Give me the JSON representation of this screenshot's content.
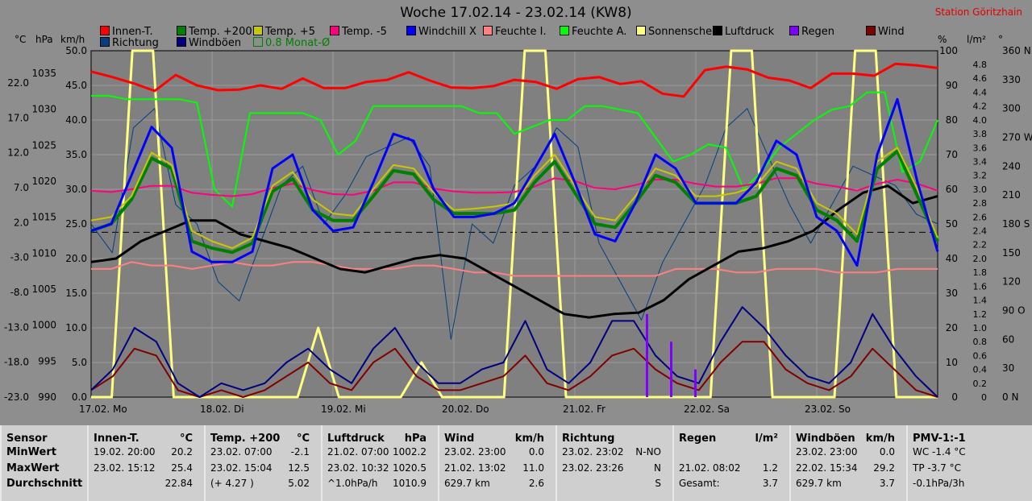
{
  "title": "Woche 17.02.14 - 23.02.14 (KW8)",
  "station": "Station Göritzhain",
  "axis_units": {
    "temp": "°C",
    "hpa": "hPa",
    "kmh": "km/h",
    "pct": "%",
    "lm2": "l/m²",
    "deg": "°"
  },
  "legend": [
    {
      "label": "Innen-T.",
      "color": "#ff0000"
    },
    {
      "label": "Temp. +200",
      "color": "#008000"
    },
    {
      "label": "Temp. +5",
      "color": "#c8c800"
    },
    {
      "label": "Temp. -5",
      "color": "#ff0080"
    },
    {
      "label": "Windchill X",
      "color": "#0000ff"
    },
    {
      "label": "Feuchte I.",
      "color": "#ff8080"
    },
    {
      "label": "Feuchte A.",
      "color": "#00ff00"
    },
    {
      "label": "Sonnenschein",
      "color": "#ffff80"
    },
    {
      "label": "Luftdruck",
      "color": "#000000"
    },
    {
      "label": "Regen",
      "color": "#8000ff"
    },
    {
      "label": "Wind",
      "color": "#800000"
    },
    {
      "label": "Richtung",
      "color": "#004080"
    },
    {
      "label": "Windböen",
      "color": "#000080"
    },
    {
      "label": "0.8 Monat-Ø",
      "color": "#008000"
    }
  ],
  "chart_data": {
    "type": "line",
    "x_labels": [
      "17.02. Mo",
      "18.02. Di",
      "19.02. Mi",
      "20.02. Do",
      "21.02. Fr",
      "22.02. Sa",
      "23.02. So"
    ],
    "axes": {
      "temp_ticks": [
        "22.0",
        "17.0",
        "12.0",
        "7.0",
        "2.0",
        "-3.0",
        "-8.0",
        "-13.0",
        "-18.0",
        "-23.0"
      ],
      "hpa_ticks": [
        "1035",
        "1030",
        "1025",
        "1020",
        "1015",
        "1010",
        "1005",
        "1000",
        "995",
        "990"
      ],
      "kmh_ticks": [
        "50.0",
        "45.0",
        "40.0",
        "35.0",
        "30.0",
        "25.0",
        "20.0",
        "15.0",
        "10.0",
        "5.0",
        "0.0"
      ],
      "pct_ticks": [
        "100",
        "90",
        "80",
        "70",
        "60",
        "50",
        "40",
        "30",
        "20",
        "10",
        "0"
      ],
      "lm2_ticks": [
        "4.8",
        "4.6",
        "4.4",
        "4.2",
        "4.0",
        "3.8",
        "3.6",
        "3.4",
        "3.2",
        "3.0",
        "2.8",
        "2.6",
        "2.4",
        "2.2",
        "2.0",
        "1.8",
        "1.6",
        "1.4",
        "1.2",
        "1.0",
        "0.8",
        "0.6",
        "0.4",
        "0.2",
        "0"
      ],
      "deg_ticks": [
        "360 N",
        "330",
        "300",
        "270 W",
        "240",
        "210",
        "180 S",
        "150",
        "120",
        "90 O",
        "60",
        "30",
        "0 N"
      ],
      "temp_range": [
        -23,
        27
      ],
      "hpa_range": [
        990,
        1040
      ],
      "grid": true
    },
    "series": [
      {
        "name": "Innen-T.",
        "unit": "°C",
        "values": [
          24.0,
          23.2,
          22.3,
          21.2,
          23.5,
          22.0,
          21.3,
          21.4,
          22.0,
          21.5,
          23.0,
          21.6,
          21.6,
          22.5,
          22.8,
          23.9,
          22.7,
          21.7,
          21.6,
          21.9,
          22.8,
          22.5,
          21.5,
          22.9,
          23.2,
          22.2,
          22.6,
          20.8,
          20.4,
          24.2,
          24.7,
          24.3,
          23.1,
          22.7,
          21.6,
          23.7,
          23.7,
          23.4,
          25.1,
          24.9,
          24.5
        ]
      },
      {
        "name": "Temp. +200",
        "unit": "°C",
        "values": [
          1.0,
          2.0,
          5.5,
          11.5,
          10.0,
          -0.5,
          -1.5,
          -2.1,
          -0.8,
          6.7,
          8.5,
          4.0,
          2.5,
          2.5,
          6.0,
          9.7,
          9.2,
          5.5,
          3.5,
          3.5,
          3.5,
          4.0,
          8.0,
          11.0,
          6.5,
          2.0,
          1.5,
          5.0,
          9.0,
          8.0,
          5.0,
          5.0,
          5.0,
          6.0,
          10.0,
          9.0,
          4.0,
          2.5,
          -0.5,
          10.0,
          12.5,
          6.0,
          -0.5
        ]
      },
      {
        "name": "Temp. +5",
        "unit": "°C",
        "values": [
          2.5,
          3.0,
          6.0,
          12.3,
          10.5,
          1.0,
          -0.5,
          -1.5,
          0.0,
          7.5,
          9.5,
          5.5,
          3.5,
          3.2,
          7.0,
          10.5,
          10.0,
          6.5,
          4.0,
          4.2,
          4.5,
          5.0,
          9.0,
          12.0,
          7.5,
          3.0,
          2.5,
          6.0,
          10.0,
          9.0,
          6.0,
          6.0,
          6.5,
          7.5,
          11.0,
          10.0,
          5.0,
          3.5,
          0.5,
          11.0,
          13.0,
          7.0,
          0.0
        ]
      },
      {
        "name": "Temp. -5",
        "unit": "°C",
        "values": [
          6.8,
          6.6,
          7.0,
          7.5,
          7.5,
          6.5,
          6.2,
          6.0,
          6.3,
          7.2,
          7.8,
          6.9,
          6.3,
          6.2,
          6.8,
          8.0,
          8.0,
          7.1,
          6.7,
          6.5,
          6.5,
          6.6,
          7.4,
          8.6,
          8.2,
          7.2,
          7.0,
          7.6,
          8.4,
          8.4,
          7.8,
          7.4,
          7.4,
          7.8,
          8.6,
          8.6,
          7.8,
          7.4,
          6.8,
          7.8,
          8.4,
          7.8,
          6.8
        ]
      },
      {
        "name": "Windchill X",
        "unit": "°C",
        "values": [
          1.0,
          2.0,
          9.0,
          16.0,
          13.0,
          -2.0,
          -3.5,
          -3.5,
          -2.0,
          10.0,
          12.0,
          4.0,
          1.0,
          1.5,
          8.0,
          15.0,
          14.0,
          7.0,
          3.0,
          3.0,
          3.5,
          5.0,
          10.0,
          15.0,
          8.0,
          0.5,
          -0.5,
          5.0,
          12.0,
          10.0,
          5.0,
          5.0,
          5.0,
          8.0,
          14.0,
          12.0,
          3.0,
          1.0,
          -4.0,
          12.0,
          20.0,
          8.0,
          -2.0
        ]
      },
      {
        "name": "Feuchte I.",
        "unit": "%",
        "values": [
          37,
          37,
          39,
          38,
          38,
          37,
          38,
          39,
          38,
          38,
          39,
          39,
          38,
          37,
          37,
          37,
          38,
          38,
          37,
          36,
          36,
          35,
          35,
          35,
          35,
          35,
          35,
          35,
          35,
          37,
          37,
          37,
          36,
          36,
          37,
          37,
          37,
          36,
          36,
          36,
          37,
          37,
          37
        ]
      },
      {
        "name": "Feuchte A.",
        "unit": "%",
        "values": [
          87,
          87,
          86,
          86,
          86,
          86,
          85,
          60,
          55,
          82,
          82,
          82,
          82,
          80,
          70,
          74,
          84,
          84,
          84,
          84,
          84,
          84,
          82,
          82,
          76,
          78,
          80,
          80,
          84,
          84,
          83,
          82,
          75,
          68,
          70,
          73,
          72,
          60,
          65,
          72,
          76,
          80,
          83,
          84,
          88,
          88,
          65,
          68,
          80
        ]
      },
      {
        "name": "Sonnenschein",
        "unit": "km/h",
        "values": [
          0,
          0,
          50,
          50,
          0,
          0,
          0,
          0,
          0,
          0,
          0,
          10,
          0,
          0,
          0,
          0,
          5,
          0,
          0,
          0,
          0,
          50,
          50,
          0,
          0,
          0,
          0,
          0,
          0,
          0,
          0,
          50,
          50,
          0,
          0,
          0,
          0,
          50,
          50,
          0,
          0,
          0
        ]
      },
      {
        "name": "Luftdruck",
        "unit": "hPa",
        "values": [
          1009.5,
          1010.0,
          1012.5,
          1014.0,
          1015.5,
          1015.5,
          1013.5,
          1012.5,
          1011.5,
          1010.0,
          1008.5,
          1008.0,
          1009.0,
          1010.0,
          1010.5,
          1010.0,
          1008.0,
          1006.0,
          1004.0,
          1002.0,
          1001.5,
          1002.0,
          1002.2,
          1004.0,
          1007.0,
          1009.0,
          1011.0,
          1011.5,
          1012.5,
          1014.0,
          1017.0,
          1019.5,
          1020.5,
          1018.0,
          1019.0
        ]
      },
      {
        "name": "Regen",
        "unit": "l/m²",
        "values": [
          0,
          0,
          0,
          0,
          0,
          0,
          0,
          0,
          0,
          0,
          0,
          0,
          0,
          0,
          0,
          0,
          0,
          0,
          0,
          0,
          0,
          0,
          0,
          1.2,
          0.8,
          0.4,
          0,
          0,
          0,
          0,
          0,
          0,
          0,
          0,
          0,
          0
        ]
      },
      {
        "name": "Wind",
        "unit": "km/h",
        "values": [
          1,
          3,
          7,
          6,
          1,
          0,
          1,
          0,
          1,
          3,
          5,
          2,
          1,
          5,
          7,
          3,
          1,
          1,
          2,
          3,
          6,
          2,
          1,
          3,
          6,
          7,
          4,
          2,
          1,
          5,
          8,
          8,
          4,
          2,
          1,
          3,
          7,
          4,
          1,
          0
        ]
      },
      {
        "name": "Richtung",
        "unit": "°",
        "values": [
          180,
          150,
          280,
          300,
          200,
          180,
          120,
          100,
          160,
          220,
          240,
          180,
          210,
          250,
          260,
          270,
          240,
          60,
          180,
          160,
          220,
          240,
          280,
          260,
          160,
          120,
          80,
          140,
          180,
          220,
          280,
          300,
          250,
          200,
          160,
          200,
          240,
          230,
          220,
          190,
          180
        ]
      },
      {
        "name": "Windböen",
        "unit": "km/h",
        "values": [
          1,
          4,
          10,
          8,
          2,
          0,
          2,
          1,
          2,
          5,
          7,
          4,
          2,
          7,
          10,
          5,
          2,
          2,
          4,
          5,
          11,
          4,
          2,
          5,
          11,
          11,
          6,
          3,
          2,
          8,
          13,
          10,
          6,
          3,
          2,
          5,
          12,
          7,
          3,
          0
        ]
      },
      {
        "name": "0.8 Monat-Ø",
        "unit": "°C",
        "values": [
          0.8,
          0.8
        ]
      }
    ]
  },
  "table": [
    {
      "sensor": "Sensor",
      "rows": [
        "MinWert",
        "MaxWert",
        "Durchschnitt"
      ]
    },
    {
      "title": "Innen-T.",
      "unit": "°C",
      "rows": [
        [
          "19.02. 20:00",
          "20.2"
        ],
        [
          "23.02. 15:12",
          "25.4"
        ],
        [
          "",
          "22.84"
        ]
      ]
    },
    {
      "title": "Temp. +200",
      "unit": "°C",
      "rows": [
        [
          "23.02. 07:00",
          "-2.1"
        ],
        [
          "23.02. 15:04",
          "12.5"
        ],
        [
          "(+ 4.27 )",
          "5.02"
        ]
      ]
    },
    {
      "title": "Luftdruck",
      "unit": "hPa",
      "rows": [
        [
          "21.02. 07:00",
          "1002.2"
        ],
        [
          "23.02. 10:32",
          "1020.5"
        ],
        [
          "^1.0hPa/h",
          "1010.9"
        ]
      ]
    },
    {
      "title": "Wind",
      "unit": "km/h",
      "rows": [
        [
          "23.02. 23:00",
          "0.0"
        ],
        [
          "21.02. 13:02",
          "11.0"
        ],
        [
          "629.7 km",
          "2.6"
        ]
      ]
    },
    {
      "title": "Richtung",
      "unit": "",
      "rows": [
        [
          "23.02. 23:02",
          "N-NO"
        ],
        [
          "23.02. 23:26",
          "N"
        ],
        [
          "",
          "S"
        ]
      ]
    },
    {
      "title": "Regen",
      "unit": "l/m²",
      "rows": [
        [
          "",
          ""
        ],
        [
          "21.02. 08:02",
          "1.2"
        ],
        [
          "Gesamt:",
          "3.7"
        ]
      ]
    },
    {
      "title": "Windböen",
      "unit": "km/h",
      "rows": [
        [
          "23.02. 23:00",
          "0.0"
        ],
        [
          "22.02. 15:34",
          "29.2"
        ],
        [
          "629.7 km",
          "3.7"
        ]
      ]
    },
    {
      "title": "PMV-1:-1",
      "unit": "",
      "rows": [
        [
          "WC -1.4 °C",
          ""
        ],
        [
          "TP -3.7 °C",
          ""
        ],
        [
          "-0.1hPa/3h",
          ""
        ]
      ]
    }
  ]
}
